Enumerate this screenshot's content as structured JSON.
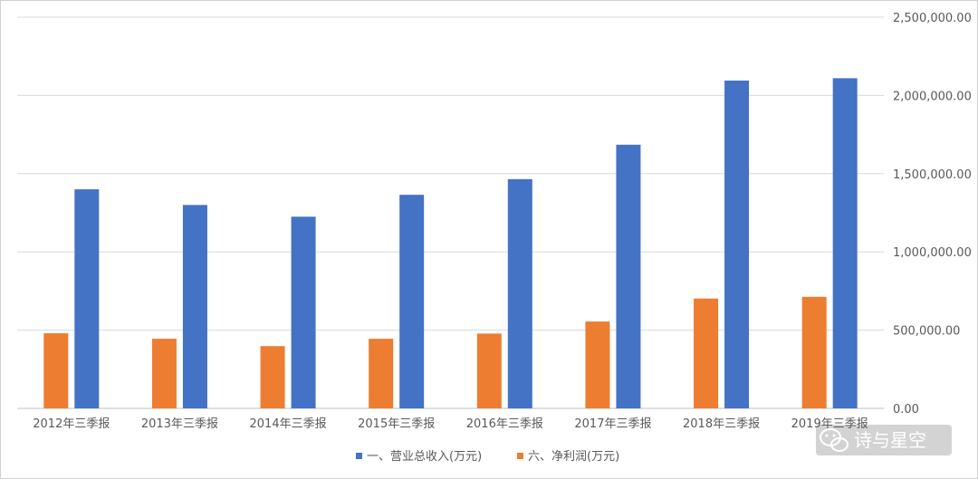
{
  "chart_data": {
    "type": "bar",
    "categories": [
      "2012年三季报",
      "2013年三季报",
      "2014年三季报",
      "2015年三季报",
      "2016年三季报",
      "2017年三季报",
      "2018年三季报",
      "2019年三季报"
    ],
    "series": [
      {
        "name": "一、营业总收入(万元)",
        "color": "#4472C4",
        "values": [
          1400000,
          1300000,
          1225000,
          1365000,
          1465000,
          1685000,
          2095000,
          2110000
        ]
      },
      {
        "name": "六、净利润(万元)",
        "color": "#ED7D31",
        "values": [
          480000,
          445000,
          398000,
          445000,
          478000,
          555000,
          702000,
          713000
        ]
      }
    ],
    "y_ticks": [
      "0.00",
      "500,000.00",
      "1,000,000.00",
      "1,500,000.00",
      "2,000,000.00",
      "2,500,000.00"
    ],
    "ylim": [
      0,
      2500000
    ],
    "y_axis_side": "right",
    "grid": true,
    "legend_position": "bottom",
    "title": "",
    "xlabel": "",
    "ylabel": ""
  },
  "watermark": {
    "icon": "wechat-icon",
    "text": "诗与星空"
  }
}
